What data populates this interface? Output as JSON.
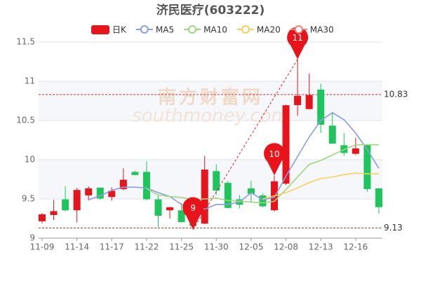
{
  "chart_data": {
    "type": "candlestick",
    "title": "济民医疗(603222)",
    "categories": [
      "11-09",
      null,
      null,
      "11-14",
      null,
      null,
      "11-17",
      null,
      null,
      "11-22",
      null,
      null,
      "11-25",
      null,
      null,
      "11-30",
      null,
      null,
      "12-05",
      null,
      null,
      "12-08",
      null,
      null,
      "12-13",
      null,
      null,
      "12-16",
      null,
      null
    ],
    "series": [
      {
        "name": "日K",
        "up_color": "#e8141c",
        "down_color": "#1fc45c",
        "open": [
          9.22,
          9.3,
          9.49,
          9.36,
          9.55,
          9.64,
          9.53,
          9.63,
          9.84,
          9.84,
          9.49,
          9.36,
          9.35,
          9.22,
          9.19,
          9.85,
          9.7,
          9.49,
          9.63,
          9.54,
          9.36,
          9.7,
          10.7,
          10.65,
          10.89,
          10.43,
          10.18,
          10.08,
          10.19,
          9.63
        ],
        "high": [
          9.32,
          9.49,
          9.66,
          9.64,
          9.66,
          9.64,
          9.65,
          9.89,
          9.86,
          9.98,
          9.55,
          9.4,
          9.45,
          9.25,
          10.05,
          9.94,
          9.73,
          9.55,
          9.73,
          9.57,
          9.8,
          10.7,
          11.28,
          11.1,
          10.97,
          10.61,
          10.34,
          10.28,
          10.2,
          9.64
        ],
        "low": [
          9.19,
          9.23,
          9.34,
          9.2,
          9.48,
          9.49,
          9.48,
          9.61,
          9.8,
          9.48,
          9.14,
          9.25,
          9.2,
          9.11,
          9.18,
          9.55,
          9.38,
          9.38,
          9.45,
          9.39,
          9.34,
          9.68,
          10.56,
          10.64,
          10.34,
          10.2,
          10.05,
          10.06,
          9.59,
          9.31
        ],
        "close": [
          9.3,
          9.34,
          9.36,
          9.61,
          9.63,
          9.51,
          9.6,
          9.74,
          9.81,
          9.5,
          9.29,
          9.39,
          9.21,
          9.16,
          9.87,
          9.61,
          9.39,
          9.43,
          9.57,
          9.41,
          9.72,
          10.69,
          10.81,
          10.82,
          10.45,
          10.21,
          10.09,
          10.14,
          9.63,
          9.4
        ]
      },
      {
        "name": "MA5",
        "color": "#8a9ee0",
        "values": [
          null,
          null,
          null,
          null,
          9.49,
          9.54,
          9.61,
          9.65,
          9.65,
          9.64,
          9.58,
          9.53,
          9.43,
          9.39,
          9.37,
          9.43,
          9.43,
          9.46,
          9.58,
          9.49,
          9.52,
          9.79,
          10.04,
          10.29,
          10.5,
          10.6,
          10.51,
          10.34,
          10.13,
          9.89
        ]
      },
      {
        "name": "MA10",
        "color": "#9fd67f",
        "values": [
          null,
          null,
          null,
          null,
          null,
          null,
          null,
          null,
          null,
          9.63,
          9.55,
          9.53,
          9.52,
          9.49,
          9.5,
          9.51,
          9.48,
          9.47,
          9.46,
          9.45,
          9.47,
          9.62,
          9.78,
          9.94,
          9.99,
          10.06,
          10.13,
          10.19,
          10.19,
          10.19
        ]
      },
      {
        "name": "MA20",
        "color": "#f7cf5a",
        "values": [
          null,
          null,
          null,
          null,
          null,
          null,
          null,
          null,
          null,
          null,
          null,
          null,
          null,
          null,
          null,
          null,
          null,
          null,
          null,
          9.5,
          9.54,
          9.58,
          9.64,
          9.71,
          9.76,
          9.78,
          9.81,
          9.83,
          9.82,
          9.82
        ]
      },
      {
        "name": "MA30",
        "color": "#f08080",
        "values": [
          null,
          null,
          null,
          null,
          null,
          null,
          null,
          null,
          null,
          null,
          null,
          null,
          null,
          null,
          null,
          null,
          null,
          null,
          null,
          null,
          null,
          null,
          null,
          null,
          null,
          null,
          null,
          null,
          null,
          null
        ]
      }
    ],
    "ylim": [
      9,
      11.5
    ],
    "yticks": [
      9,
      9.5,
      10,
      10.5,
      11,
      11.5
    ],
    "grid": true,
    "reference_lines": [
      {
        "value": 10.83,
        "color": "#c0392b"
      },
      {
        "value": 9.13,
        "color": "#c0392b"
      }
    ],
    "annotations": [
      {
        "text": "11",
        "value": 11.28,
        "color": "#e8141c"
      },
      {
        "text": "10",
        "value": 9.8,
        "color": "#e8141c"
      },
      {
        "text": "9",
        "value": 9.11,
        "color": "#e8141c"
      }
    ],
    "watermark": [
      "南方财富网",
      "southmoney.com"
    ]
  }
}
